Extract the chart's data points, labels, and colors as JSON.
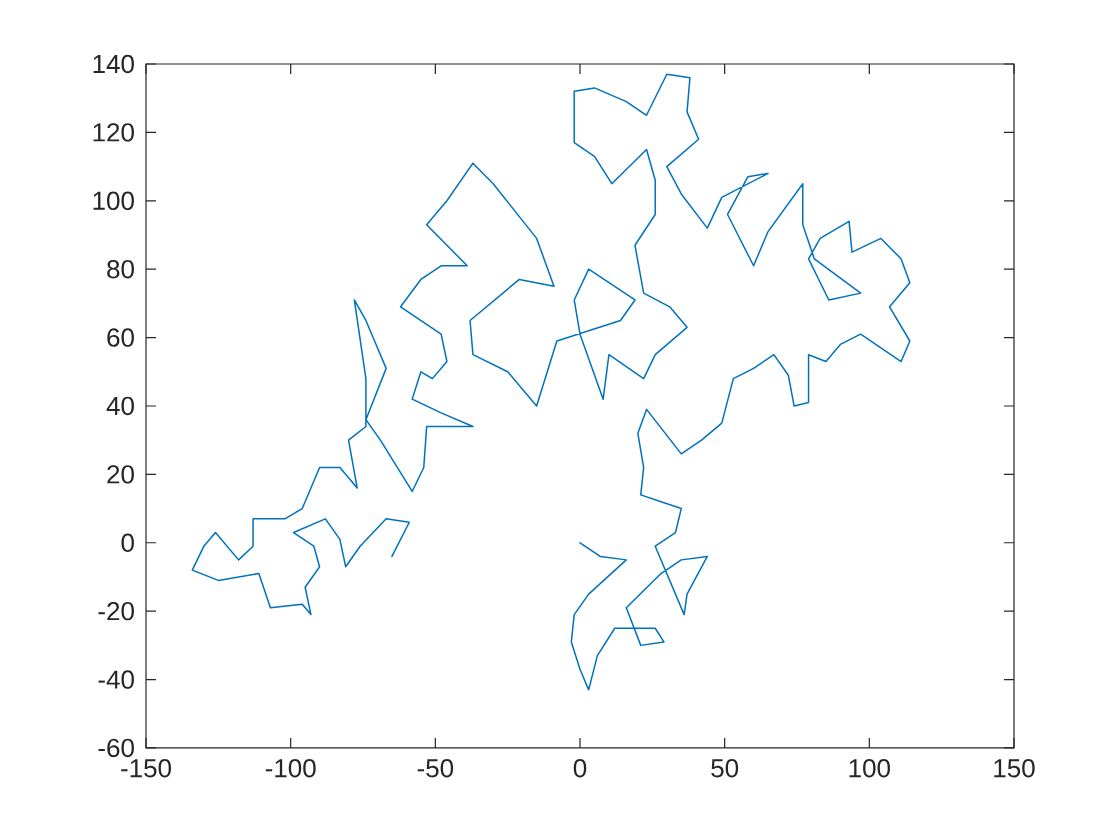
{
  "chart_data": {
    "type": "line",
    "x": [
      0,
      7,
      16,
      3,
      -2,
      -3,
      0,
      3,
      6,
      12,
      26,
      29,
      21,
      16,
      28,
      35,
      44,
      37,
      36,
      26,
      33,
      35,
      28,
      21,
      22,
      20,
      23,
      35,
      42,
      49,
      53,
      60,
      67,
      72,
      74,
      79,
      79,
      85,
      90,
      97,
      104,
      111,
      114,
      107,
      114,
      111,
      104,
      94,
      93,
      83,
      79,
      86,
      97,
      81,
      77,
      77,
      65,
      60,
      51,
      58,
      65,
      49,
      44,
      35,
      30,
      41,
      37,
      38,
      30,
      23,
      16,
      5,
      -2,
      -2,
      5,
      11,
      23,
      26,
      26,
      19,
      22,
      31,
      37,
      26,
      22,
      10,
      8,
      0,
      -2,
      3,
      19,
      14,
      -8,
      -15,
      -25,
      -37,
      -38,
      -21,
      -9,
      -15,
      -30,
      -37,
      -46,
      -53,
      -39,
      -48,
      -55,
      -62,
      -48,
      -46,
      -51,
      -55,
      -58,
      -48,
      -37,
      -53,
      -54,
      -58,
      -69,
      -74,
      -67,
      -71,
      -74,
      -78,
      -74,
      -74,
      -80,
      -77,
      -83,
      -90,
      -96,
      -102,
      -113,
      -113,
      -118,
      -126,
      -130,
      -134,
      -125,
      -111,
      -107,
      -96,
      -93,
      -95,
      -90,
      -92,
      -99,
      -88,
      -83,
      -81,
      -76,
      -67,
      -59,
      -65
    ],
    "series": [
      {
        "color": "#0072bd",
        "values": [
          0,
          -4,
          -5,
          -15,
          -21,
          -29,
          -37,
          -43,
          -33,
          -25,
          -25,
          -29,
          -30,
          -19,
          -9,
          -5,
          -4,
          -15,
          -21,
          -1,
          3,
          10,
          12,
          14,
          22,
          32,
          39,
          26,
          30,
          35,
          48,
          51,
          55,
          49,
          40,
          41,
          55,
          53,
          58,
          61,
          57,
          53,
          59,
          69,
          76,
          83,
          89,
          85,
          94,
          89,
          83,
          71,
          73,
          83,
          93,
          105,
          91,
          81,
          96,
          107,
          108,
          101,
          92,
          102,
          110,
          118,
          126,
          136,
          137,
          125,
          129,
          133,
          132,
          117,
          113,
          105,
          115,
          106,
          96,
          87,
          73,
          69,
          63,
          55,
          48,
          55,
          42,
          61,
          71,
          80,
          71,
          65,
          59,
          40,
          50,
          55,
          65,
          77,
          75,
          89,
          105,
          111,
          100,
          93,
          81,
          81,
          77,
          69,
          61,
          53,
          48,
          50,
          42,
          38,
          34,
          34,
          22,
          15,
          30,
          36,
          51,
          59,
          65,
          71,
          48,
          34,
          30,
          16,
          22,
          22,
          10,
          7,
          7,
          -1,
          -5,
          3,
          -1,
          -8,
          -11,
          -9,
          -19,
          -18,
          -21,
          -13,
          -7,
          -1,
          3,
          7,
          1,
          -7,
          -1,
          7,
          6,
          -4
        ]
      }
    ],
    "xlim": [
      -150,
      150
    ],
    "ylim": [
      -60,
      140
    ],
    "xticks": [
      -150,
      -100,
      -50,
      0,
      50,
      100,
      150
    ],
    "yticks": [
      -60,
      -40,
      -20,
      0,
      20,
      40,
      60,
      80,
      100,
      120,
      140
    ],
    "marker": "none",
    "line_style": "solid"
  }
}
